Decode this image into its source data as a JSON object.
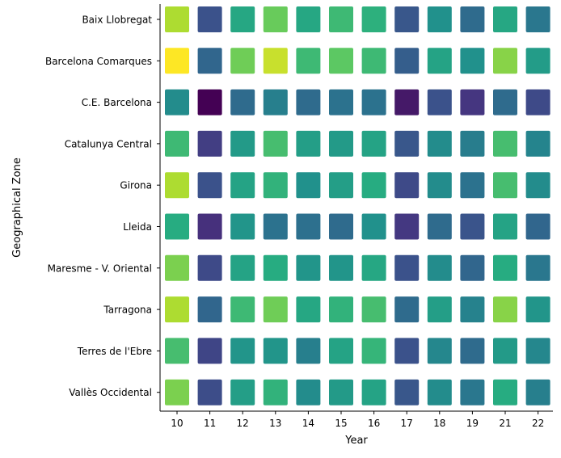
{
  "chart_data": {
    "type": "heatmap",
    "title": "",
    "xlabel": "Year",
    "ylabel": "Geographical Zone",
    "x_categories": [
      "10",
      "11",
      "12",
      "13",
      "14",
      "15",
      "16",
      "17",
      "18",
      "19",
      "21",
      "22"
    ],
    "y_categories": [
      "Baix Llobregat",
      "Barcelona Comarques",
      "C.E. Barcelona",
      "Catalunya Central",
      "Girona",
      "Lleida",
      "Maresme - V. Oriental",
      "Tarragona",
      "Terres de l'Ebre",
      "Vallès Occidental"
    ],
    "colormap": "viridis",
    "value_range": [
      0,
      1
    ],
    "legend": "none",
    "grid": false,
    "values": [
      [
        0.88,
        0.25,
        0.6,
        0.77,
        0.6,
        0.68,
        0.64,
        0.27,
        0.5,
        0.35,
        0.6,
        0.4
      ],
      [
        1.0,
        0.33,
        0.78,
        0.92,
        0.68,
        0.75,
        0.68,
        0.3,
        0.58,
        0.5,
        0.82,
        0.55
      ],
      [
        0.48,
        0.0,
        0.35,
        0.43,
        0.35,
        0.38,
        0.38,
        0.06,
        0.25,
        0.14,
        0.35,
        0.22
      ],
      [
        0.68,
        0.17,
        0.54,
        0.7,
        0.56,
        0.54,
        0.58,
        0.27,
        0.48,
        0.42,
        0.7,
        0.45
      ],
      [
        0.88,
        0.25,
        0.58,
        0.65,
        0.5,
        0.56,
        0.62,
        0.22,
        0.48,
        0.38,
        0.7,
        0.48
      ],
      [
        0.62,
        0.12,
        0.52,
        0.38,
        0.37,
        0.35,
        0.5,
        0.15,
        0.35,
        0.26,
        0.58,
        0.33
      ],
      [
        0.8,
        0.22,
        0.58,
        0.62,
        0.52,
        0.52,
        0.6,
        0.25,
        0.48,
        0.33,
        0.62,
        0.4
      ],
      [
        0.88,
        0.33,
        0.68,
        0.78,
        0.6,
        0.65,
        0.7,
        0.35,
        0.56,
        0.44,
        0.82,
        0.52
      ],
      [
        0.7,
        0.2,
        0.52,
        0.52,
        0.43,
        0.58,
        0.66,
        0.25,
        0.46,
        0.35,
        0.54,
        0.46
      ],
      [
        0.8,
        0.23,
        0.56,
        0.65,
        0.48,
        0.54,
        0.58,
        0.27,
        0.48,
        0.4,
        0.62,
        0.43
      ]
    ]
  }
}
